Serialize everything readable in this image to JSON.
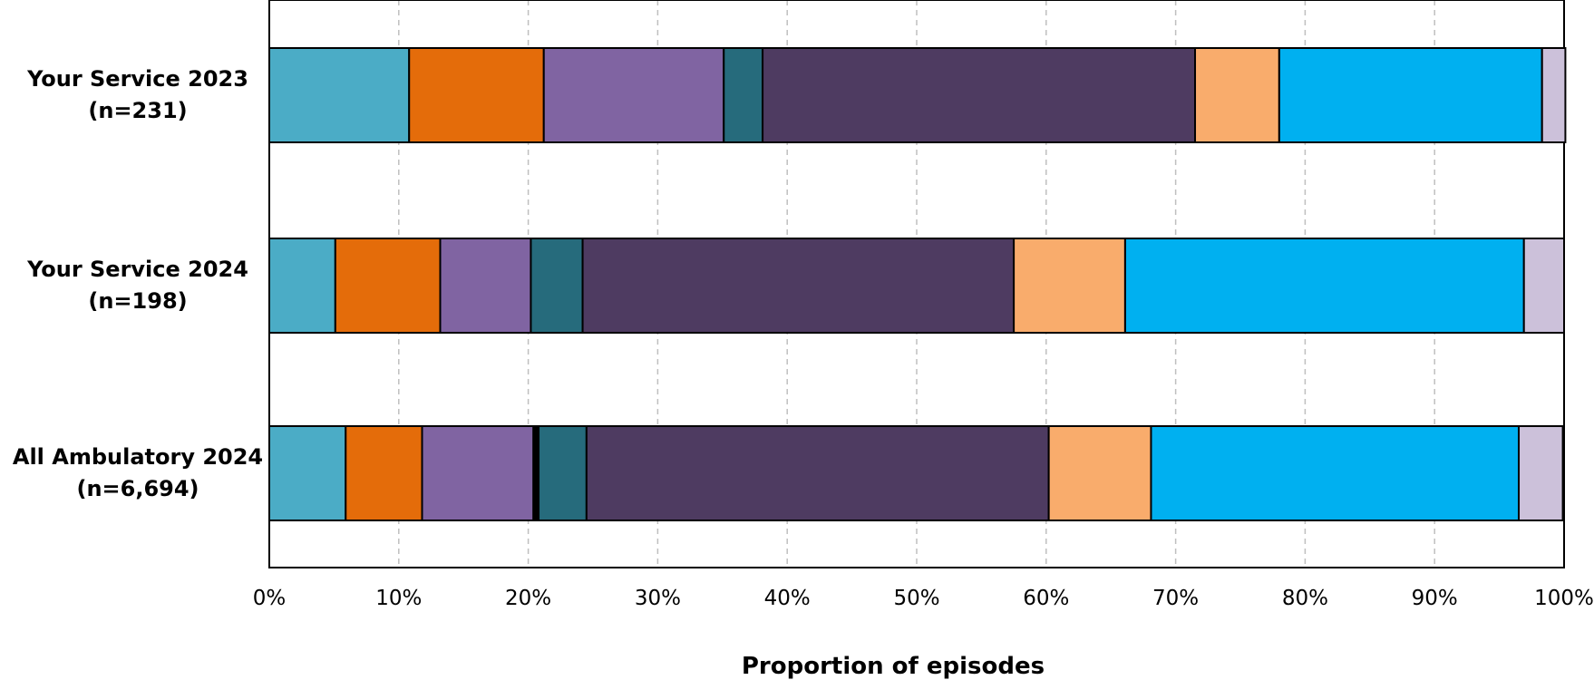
{
  "chart_data": {
    "type": "bar",
    "orientation": "horizontal",
    "stacked": true,
    "title": "",
    "xlabel": "Proportion of episodes",
    "ylabel": "",
    "xlim": [
      0,
      100
    ],
    "x_ticks": [
      "0%",
      "10%",
      "20%",
      "30%",
      "40%",
      "50%",
      "60%",
      "70%",
      "80%",
      "90%",
      "100%"
    ],
    "grid": "vertical dashed",
    "legend": "none",
    "categories": [
      [
        "Your Service 2023",
        "(n=231)"
      ],
      [
        "Your Service 2024",
        "(n=198)"
      ],
      [
        "All Ambulatory 2024",
        "(n=6,694)"
      ]
    ],
    "series": [
      {
        "color": "#4BACC6",
        "values": [
          10.8,
          5.1,
          5.9
        ]
      },
      {
        "color": "#E46C0A",
        "values": [
          10.4,
          8.1,
          5.9
        ]
      },
      {
        "color": "#8064A2",
        "values": [
          13.9,
          7.0,
          8.6
        ]
      },
      {
        "color": "#000000",
        "values": [
          0.0,
          0.0,
          0.4
        ]
      },
      {
        "color": "#266B7C",
        "values": [
          3.0,
          4.0,
          3.7
        ]
      },
      {
        "color": "#4E3B61",
        "values": [
          33.4,
          33.3,
          35.7
        ]
      },
      {
        "color": "#F9AC6C",
        "values": [
          6.5,
          8.6,
          7.9
        ]
      },
      {
        "color": "#00B0F0",
        "values": [
          20.3,
          30.8,
          28.4
        ]
      },
      {
        "color": "#CCC1DA",
        "values": [
          1.8,
          3.1,
          3.4
        ]
      }
    ]
  }
}
